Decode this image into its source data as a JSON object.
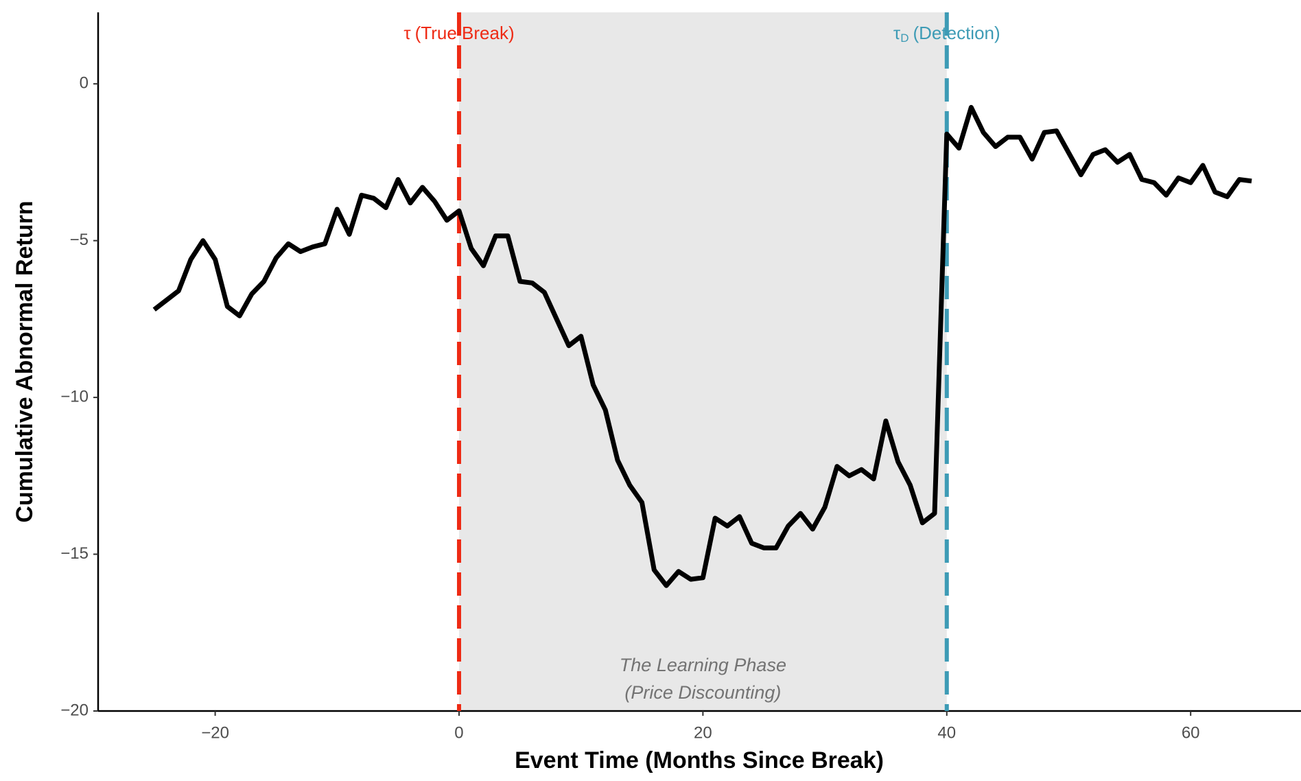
{
  "chart_data": {
    "type": "line",
    "xlabel": "Event Time (Months Since Break)",
    "ylabel": "Cumulative Abnormal Return",
    "x": [
      -25,
      -24,
      -23,
      -22,
      -21,
      -20,
      -19,
      -18,
      -17,
      -16,
      -15,
      -14,
      -13,
      -12,
      -11,
      -10,
      -9,
      -8,
      -7,
      -6,
      -5,
      -4,
      -3,
      -2,
      -1,
      0,
      1,
      2,
      3,
      4,
      5,
      6,
      7,
      8,
      9,
      10,
      11,
      12,
      13,
      14,
      15,
      16,
      17,
      18,
      19,
      20,
      21,
      22,
      23,
      24,
      25,
      26,
      27,
      28,
      29,
      30,
      31,
      32,
      33,
      34,
      35,
      36,
      37,
      38,
      39,
      40,
      41,
      42,
      43,
      44,
      45,
      46,
      47,
      48,
      49,
      50,
      51,
      52,
      53,
      54,
      55,
      56,
      57,
      58,
      59,
      60,
      61,
      62,
      63,
      64,
      65
    ],
    "series": [
      {
        "color": "#000000",
        "values": [
          -7.2,
          -6.9,
          -6.6,
          -5.6,
          -5.0,
          -5.6,
          -7.1,
          -7.4,
          -6.7,
          -6.3,
          -5.55,
          -5.1,
          -5.35,
          -5.2,
          -5.1,
          -4.0,
          -4.8,
          -3.55,
          -3.65,
          -3.95,
          -3.05,
          -3.8,
          -3.3,
          -3.75,
          -4.35,
          -4.05,
          -5.25,
          -5.8,
          -4.85,
          -4.85,
          -6.3,
          -6.35,
          -6.65,
          -7.5,
          -8.35,
          -8.05,
          -9.6,
          -10.4,
          -12.0,
          -12.8,
          -13.35,
          -15.5,
          -16.0,
          -15.55,
          -15.8,
          -15.75,
          -13.85,
          -14.1,
          -13.8,
          -14.65,
          -14.8,
          -14.8,
          -14.1,
          -13.7,
          -14.2,
          -13.5,
          -12.2,
          -12.5,
          -12.3,
          -12.6,
          -10.75,
          -12.05,
          -12.8,
          -14.0,
          -13.7,
          -1.6,
          -2.05,
          -0.75,
          -1.55,
          -2.0,
          -1.7,
          -1.7,
          -2.4,
          -1.55,
          -1.5,
          -2.2,
          -2.9,
          -2.25,
          -2.1,
          -2.5,
          -2.25,
          -3.05,
          -3.15,
          -3.55,
          -3.0,
          -3.15,
          -2.6,
          -3.45,
          -3.6,
          -3.05,
          -3.1
        ]
      }
    ],
    "shade": {
      "x": [
        0,
        40
      ],
      "color": "#e8e8e8",
      "lines": [
        "The Learning Phase",
        "(Price Discounting)"
      ]
    },
    "vlines": [
      {
        "x": 0,
        "color": "#ee2a14",
        "symbol": "τ",
        "text": "(True Break)"
      },
      {
        "x": 40,
        "color": "#3d9bb5",
        "symbol": "τ",
        "subscript": "D",
        "text": "(Detection)"
      }
    ],
    "xlim": [
      -29.6,
      69.05
    ],
    "ylim": [
      -20,
      2.28
    ],
    "xticks": [
      {
        "value": -20,
        "label": "−20"
      },
      0,
      20,
      40,
      60
    ],
    "yticks": [
      {
        "value": -20,
        "label": "−20"
      },
      {
        "value": -15,
        "label": "−15"
      },
      {
        "value": -10,
        "label": "−10"
      },
      {
        "value": -5,
        "label": "−5"
      },
      0
    ]
  }
}
